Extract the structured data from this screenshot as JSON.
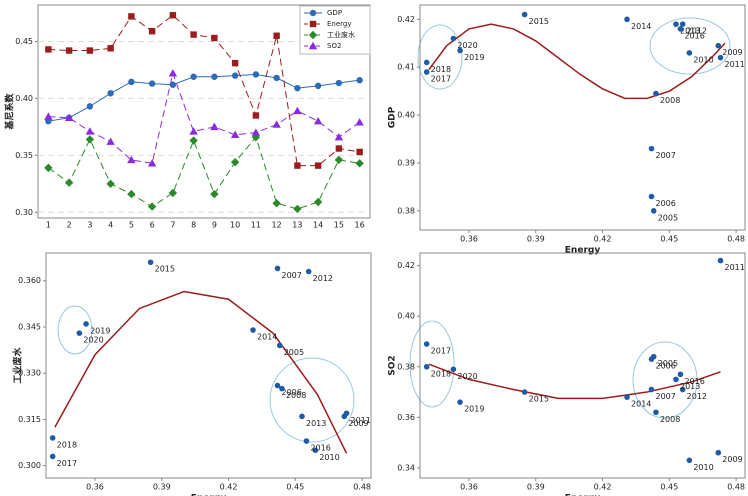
{
  "chart_data": [
    {
      "type": "line",
      "y_label": "基尼系数",
      "categories": [
        "1",
        "2",
        "3",
        "4",
        "5",
        "6",
        "7",
        "8",
        "9",
        "10",
        "11",
        "12",
        "13",
        "14",
        "15",
        "16"
      ],
      "ylim": [
        0.295,
        0.482
      ],
      "yticks": [
        {
          "value": 0.3,
          "label": "0.30"
        },
        0.35,
        {
          "value": 0.4,
          "label": "0.40"
        },
        0.45
      ],
      "grid": true,
      "series": [
        {
          "name": "GDP",
          "color": "#2e6bb5",
          "marker": "circle",
          "dashed": false,
          "values": [
            0.38,
            0.383,
            0.393,
            0.4045,
            0.4145,
            0.413,
            0.412,
            0.419,
            0.419,
            0.42,
            0.421,
            0.418,
            0.409,
            0.411,
            0.4135,
            0.416
          ]
        },
        {
          "name": "Energy",
          "color": "#9b1c1c",
          "marker": "square",
          "dashed": true,
          "values": [
            0.443,
            0.442,
            0.442,
            0.444,
            0.472,
            0.459,
            0.473,
            0.456,
            0.453,
            0.431,
            0.385,
            0.455,
            0.341,
            0.341,
            0.356,
            0.353
          ]
        },
        {
          "name": "工业废水",
          "color": "#2a8a2a",
          "marker": "diamond",
          "dashed": true,
          "values": [
            0.339,
            0.326,
            0.364,
            0.325,
            0.316,
            0.305,
            0.317,
            0.363,
            0.316,
            0.344,
            0.366,
            0.308,
            0.303,
            0.309,
            0.346,
            0.343
          ]
        },
        {
          "name": "SO2",
          "color": "#8a2be2",
          "marker": "triangle",
          "dashed": true,
          "values": [
            0.384,
            0.383,
            0.371,
            0.362,
            0.346,
            0.343,
            0.422,
            0.371,
            0.375,
            0.368,
            0.37,
            0.377,
            0.389,
            0.38,
            0.366,
            0.379
          ]
        }
      ]
    },
    {
      "type": "scatter",
      "x_label": "Energy",
      "y_label": "GDP",
      "color": "#1f5aa6",
      "xlim": [
        0.338,
        0.484
      ],
      "xticks": [
        0.36,
        0.39,
        0.42,
        0.45,
        0.48
      ],
      "ylim": [
        0.376,
        0.423
      ],
      "yticks": [
        0.38,
        0.39,
        {
          "value": 0.4,
          "label": "0.40"
        },
        0.41,
        0.42
      ],
      "labels": [
        "2005",
        "2006",
        "2007",
        "2008",
        "2009",
        "2010",
        "2011",
        "2012",
        "2013",
        "2014",
        "2015",
        "2016",
        "2017",
        "2018",
        "2019",
        "2020"
      ],
      "x": [
        0.443,
        0.442,
        0.442,
        0.444,
        0.472,
        0.459,
        0.473,
        0.456,
        0.453,
        0.431,
        0.385,
        0.455,
        0.341,
        0.341,
        0.356,
        0.353
      ],
      "y": [
        0.38,
        0.383,
        0.393,
        0.4045,
        0.4145,
        0.413,
        0.412,
        0.419,
        0.419,
        0.42,
        0.421,
        0.418,
        0.409,
        0.411,
        0.4135,
        0.416
      ],
      "trend": {
        "color": "#9b1c1c",
        "x": [
          0.342,
          0.35,
          0.36,
          0.37,
          0.38,
          0.39,
          0.4,
          0.41,
          0.42,
          0.43,
          0.44,
          0.45,
          0.46,
          0.47,
          0.475
        ],
        "y": [
          0.4095,
          0.4145,
          0.418,
          0.419,
          0.418,
          0.4155,
          0.412,
          0.4085,
          0.4055,
          0.4035,
          0.4035,
          0.405,
          0.408,
          0.4125,
          0.415
        ]
      }
    },
    {
      "type": "scatter",
      "x_label": "Energy",
      "y_label": "工业废水",
      "color": "#1f5aa6",
      "xlim": [
        0.338,
        0.484
      ],
      "xticks": [
        0.36,
        0.39,
        0.42,
        0.45,
        0.48
      ],
      "ylim": [
        0.296,
        0.369
      ],
      "yticks": [
        {
          "value": 0.3,
          "label": "0.300"
        },
        0.315,
        {
          "value": 0.33,
          "label": "0.330"
        },
        0.345,
        {
          "value": 0.36,
          "label": "0.360"
        }
      ],
      "labels": [
        "2005",
        "2006",
        "2007",
        "2008",
        "2009",
        "2010",
        "2011",
        "2012",
        "2013",
        "2014",
        "2015",
        "2016",
        "2017",
        "2018",
        "2019",
        "2020"
      ],
      "x": [
        0.443,
        0.442,
        0.442,
        0.444,
        0.472,
        0.459,
        0.473,
        0.456,
        0.453,
        0.431,
        0.385,
        0.455,
        0.341,
        0.341,
        0.356,
        0.353
      ],
      "y": [
        0.339,
        0.326,
        0.364,
        0.325,
        0.316,
        0.305,
        0.317,
        0.363,
        0.316,
        0.344,
        0.366,
        0.308,
        0.303,
        0.309,
        0.346,
        0.343
      ],
      "trend": {
        "color": "#9b1c1c",
        "x": [
          0.342,
          0.36,
          0.38,
          0.4,
          0.42,
          0.44,
          0.46,
          0.473
        ],
        "y": [
          0.3125,
          0.336,
          0.351,
          0.3565,
          0.354,
          0.343,
          0.323,
          0.304
        ]
      }
    },
    {
      "type": "scatter",
      "x_label": "Energy",
      "y_label": "SO2",
      "color": "#1f5aa6",
      "xlim": [
        0.338,
        0.484
      ],
      "xticks": [
        0.36,
        0.39,
        0.42,
        0.45,
        0.48
      ],
      "ylim": [
        0.336,
        0.425
      ],
      "yticks": [
        0.34,
        0.36,
        0.38,
        {
          "value": 0.4,
          "label": "0.40"
        },
        0.42
      ],
      "labels": [
        "2005",
        "2006",
        "2007",
        "2008",
        "2009",
        "2010",
        "2011",
        "2012",
        "2013",
        "2014",
        "2015",
        "2016",
        "2017",
        "2018",
        "2019",
        "2020"
      ],
      "x": [
        0.443,
        0.442,
        0.442,
        0.444,
        0.472,
        0.459,
        0.473,
        0.456,
        0.453,
        0.431,
        0.385,
        0.455,
        0.341,
        0.341,
        0.356,
        0.353
      ],
      "y": [
        0.384,
        0.383,
        0.371,
        0.362,
        0.346,
        0.343,
        0.422,
        0.371,
        0.375,
        0.368,
        0.37,
        0.377,
        0.389,
        0.38,
        0.366,
        0.379
      ],
      "trend": {
        "color": "#9b1c1c",
        "x": [
          0.342,
          0.36,
          0.38,
          0.4,
          0.42,
          0.44,
          0.46,
          0.473
        ],
        "y": [
          0.381,
          0.375,
          0.371,
          0.3675,
          0.3675,
          0.37,
          0.374,
          0.378
        ]
      }
    }
  ]
}
